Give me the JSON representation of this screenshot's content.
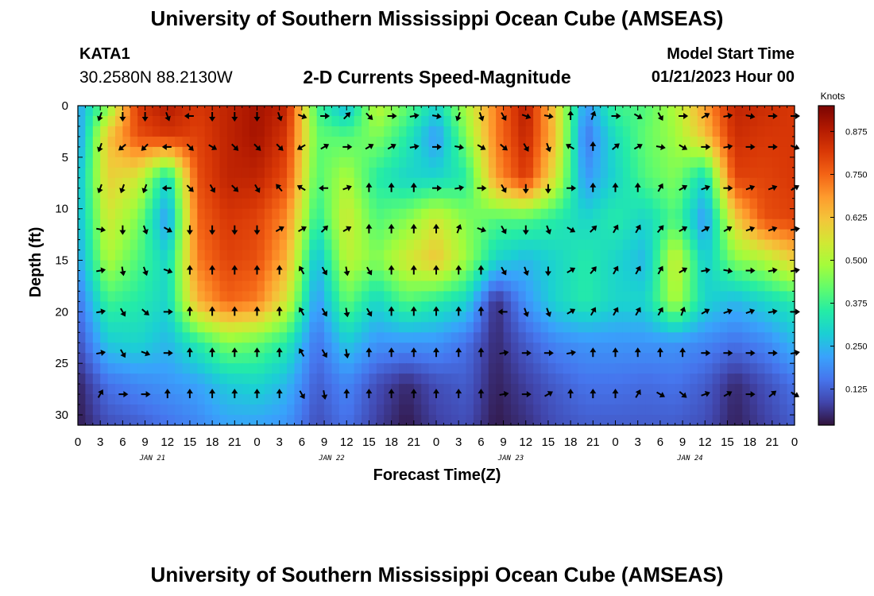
{
  "header": {
    "title": "University of Southern Mississippi Ocean Cube (AMSEAS)",
    "station_id": "KATA1",
    "station_coords": "30.2580N  88.2130W",
    "plot_title": "2-D Currents Speed-Magnitude",
    "model_start_label": "Model Start Time",
    "model_start_value": "01/21/2023 Hour 00"
  },
  "footer": {
    "title": "University of Southern Mississippi Ocean Cube (AMSEAS)"
  },
  "chart_data": {
    "type": "heatmap",
    "title": "2-D Currents Speed-Magnitude",
    "xlabel": "Forecast Time(Z)",
    "ylabel": "Depth (ft)",
    "colorbar_label": "Knots",
    "x_range_hours": [
      0,
      96
    ],
    "y_range_ft": [
      0,
      31
    ],
    "x_tick_labels": [
      "0",
      "3",
      "6",
      "9",
      "12",
      "15",
      "18",
      "21",
      "0",
      "3",
      "6",
      "9",
      "12",
      "15",
      "18",
      "21",
      "0",
      "3",
      "6",
      "9",
      "12",
      "15",
      "18",
      "21",
      "0",
      "3",
      "6",
      "9",
      "12",
      "15",
      "18",
      "21",
      "0"
    ],
    "date_labels": [
      {
        "label": "JAN 21",
        "hour": 10
      },
      {
        "label": "JAN 22",
        "hour": 34
      },
      {
        "label": "JAN 23",
        "hour": 58
      },
      {
        "label": "JAN 24",
        "hour": 82
      }
    ],
    "y_ticks": [
      0,
      5,
      10,
      15,
      20,
      25,
      30
    ],
    "colorbar_ticks": [
      "0.125",
      "0.250",
      "0.375",
      "0.500",
      "0.625",
      "0.750",
      "0.875"
    ],
    "colorbar_tick_values": [
      0.125,
      0.25,
      0.375,
      0.5,
      0.625,
      0.75,
      0.875
    ],
    "colorbar_range": [
      0.02,
      0.95
    ],
    "colors": {
      "palette": [
        "#30123b",
        "#4145ab",
        "#4675ed",
        "#39a2fc",
        "#1bcfd4",
        "#24eca6",
        "#61fc6c",
        "#a4fc3b",
        "#d1e834",
        "#f3c63a",
        "#fe9b2d",
        "#f36315",
        "#d93806",
        "#b11901",
        "#7a0402"
      ]
    },
    "grid_hours": [
      0,
      4,
      8,
      12,
      16,
      20,
      24,
      28,
      32,
      36,
      40,
      44,
      48,
      52,
      56,
      60,
      64,
      68,
      72,
      76,
      80,
      84,
      88,
      92,
      96
    ],
    "grid_depths_ft": [
      0,
      3,
      7,
      11,
      15,
      19,
      23,
      27,
      31
    ],
    "speed_knots": [
      [
        0.22,
        0.45,
        0.82,
        0.88,
        0.82,
        0.86,
        0.9,
        0.86,
        0.38,
        0.25,
        0.52,
        0.42,
        0.3,
        0.5,
        0.72,
        0.88,
        0.6,
        0.2,
        0.38,
        0.4,
        0.5,
        0.68,
        0.86,
        0.84,
        0.82
      ],
      [
        0.2,
        0.62,
        0.78,
        0.82,
        0.8,
        0.86,
        0.9,
        0.82,
        0.42,
        0.4,
        0.45,
        0.35,
        0.2,
        0.45,
        0.72,
        0.86,
        0.62,
        0.15,
        0.32,
        0.42,
        0.48,
        0.62,
        0.84,
        0.82,
        0.82
      ],
      [
        0.25,
        0.6,
        0.55,
        0.3,
        0.78,
        0.86,
        0.86,
        0.78,
        0.4,
        0.5,
        0.35,
        0.3,
        0.3,
        0.35,
        0.68,
        0.82,
        0.55,
        0.2,
        0.3,
        0.4,
        0.45,
        0.3,
        0.8,
        0.8,
        0.82
      ],
      [
        0.25,
        0.55,
        0.45,
        0.2,
        0.75,
        0.82,
        0.8,
        0.7,
        0.35,
        0.55,
        0.4,
        0.45,
        0.55,
        0.45,
        0.4,
        0.4,
        0.35,
        0.3,
        0.35,
        0.3,
        0.4,
        0.2,
        0.6,
        0.78,
        0.8
      ],
      [
        0.22,
        0.5,
        0.4,
        0.3,
        0.72,
        0.8,
        0.78,
        0.65,
        0.25,
        0.52,
        0.45,
        0.55,
        0.62,
        0.48,
        0.3,
        0.25,
        0.3,
        0.35,
        0.3,
        0.25,
        0.55,
        0.28,
        0.45,
        0.5,
        0.6
      ],
      [
        0.15,
        0.38,
        0.35,
        0.3,
        0.65,
        0.75,
        0.72,
        0.55,
        0.2,
        0.42,
        0.3,
        0.4,
        0.35,
        0.3,
        0.05,
        0.2,
        0.3,
        0.35,
        0.3,
        0.3,
        0.5,
        0.3,
        0.25,
        0.3,
        0.35
      ],
      [
        0.1,
        0.28,
        0.3,
        0.25,
        0.35,
        0.45,
        0.42,
        0.35,
        0.15,
        0.28,
        0.2,
        0.2,
        0.2,
        0.15,
        0.05,
        0.12,
        0.18,
        0.2,
        0.2,
        0.2,
        0.2,
        0.18,
        0.15,
        0.18,
        0.25
      ],
      [
        0.04,
        0.15,
        0.18,
        0.2,
        0.22,
        0.28,
        0.3,
        0.25,
        0.12,
        0.18,
        0.1,
        0.05,
        0.1,
        0.12,
        0.04,
        0.08,
        0.12,
        0.15,
        0.15,
        0.14,
        0.15,
        0.12,
        0.05,
        0.1,
        0.15
      ],
      [
        0.03,
        0.1,
        0.12,
        0.15,
        0.18,
        0.22,
        0.22,
        0.2,
        0.1,
        0.15,
        0.08,
        0.03,
        0.08,
        0.1,
        0.03,
        0.06,
        0.1,
        0.12,
        0.12,
        0.12,
        0.12,
        0.1,
        0.04,
        0.08,
        0.12
      ]
    ],
    "vector_hours": [
      3,
      6,
      9,
      12,
      15,
      18,
      21,
      24,
      27,
      30,
      33,
      36,
      39,
      42,
      45,
      48,
      51,
      54,
      57,
      60,
      63,
      66,
      69,
      72,
      75,
      78,
      81,
      84,
      87,
      90,
      93,
      96
    ],
    "vector_depths_ft": [
      1,
      4,
      8,
      12,
      16,
      20,
      24,
      28
    ],
    "vector_dir_deg": [
      [
        200,
        180,
        180,
        160,
        270,
        180,
        180,
        180,
        160,
        110,
        90,
        45,
        135,
        90,
        80,
        100,
        200,
        160,
        150,
        110,
        100,
        0,
        20,
        90,
        120,
        150,
        90,
        60,
        80,
        100,
        90,
        90
      ],
      [
        200,
        230,
        225,
        270,
        135,
        120,
        135,
        135,
        135,
        240,
        60,
        90,
        60,
        60,
        80,
        90,
        100,
        120,
        130,
        150,
        160,
        300,
        0,
        50,
        60,
        100,
        120,
        90,
        80,
        90,
        90,
        110
      ],
      [
        200,
        200,
        200,
        270,
        135,
        150,
        135,
        150,
        320,
        300,
        270,
        70,
        0,
        0,
        0,
        90,
        80,
        90,
        150,
        180,
        180,
        90,
        0,
        0,
        0,
        30,
        60,
        70,
        90,
        70,
        70,
        60
      ],
      [
        100,
        180,
        160,
        120,
        180,
        180,
        180,
        180,
        60,
        60,
        45,
        60,
        0,
        0,
        0,
        0,
        20,
        110,
        150,
        180,
        160,
        120,
        45,
        30,
        30,
        40,
        60,
        60,
        60,
        70,
        70,
        80
      ],
      [
        80,
        170,
        160,
        110,
        0,
        0,
        0,
        0,
        0,
        330,
        150,
        170,
        150,
        0,
        0,
        0,
        0,
        0,
        150,
        160,
        180,
        60,
        40,
        30,
        30,
        30,
        60,
        80,
        100,
        90,
        80,
        80
      ],
      [
        80,
        150,
        130,
        90,
        0,
        0,
        0,
        0,
        0,
        330,
        150,
        170,
        150,
        0,
        0,
        0,
        0,
        0,
        270,
        160,
        160,
        60,
        30,
        30,
        30,
        30,
        20,
        60,
        70,
        70,
        80,
        90
      ],
      [
        80,
        150,
        110,
        90,
        0,
        0,
        0,
        0,
        0,
        330,
        150,
        170,
        0,
        0,
        0,
        0,
        0,
        0,
        80,
        90,
        90,
        80,
        0,
        0,
        0,
        0,
        0,
        90,
        90,
        90,
        90,
        80
      ],
      [
        30,
        90,
        90,
        0,
        0,
        0,
        0,
        0,
        0,
        150,
        170,
        0,
        0,
        0,
        0,
        0,
        0,
        0,
        80,
        90,
        60,
        0,
        0,
        0,
        30,
        120,
        130,
        70,
        60,
        90,
        50,
        120
      ]
    ]
  }
}
